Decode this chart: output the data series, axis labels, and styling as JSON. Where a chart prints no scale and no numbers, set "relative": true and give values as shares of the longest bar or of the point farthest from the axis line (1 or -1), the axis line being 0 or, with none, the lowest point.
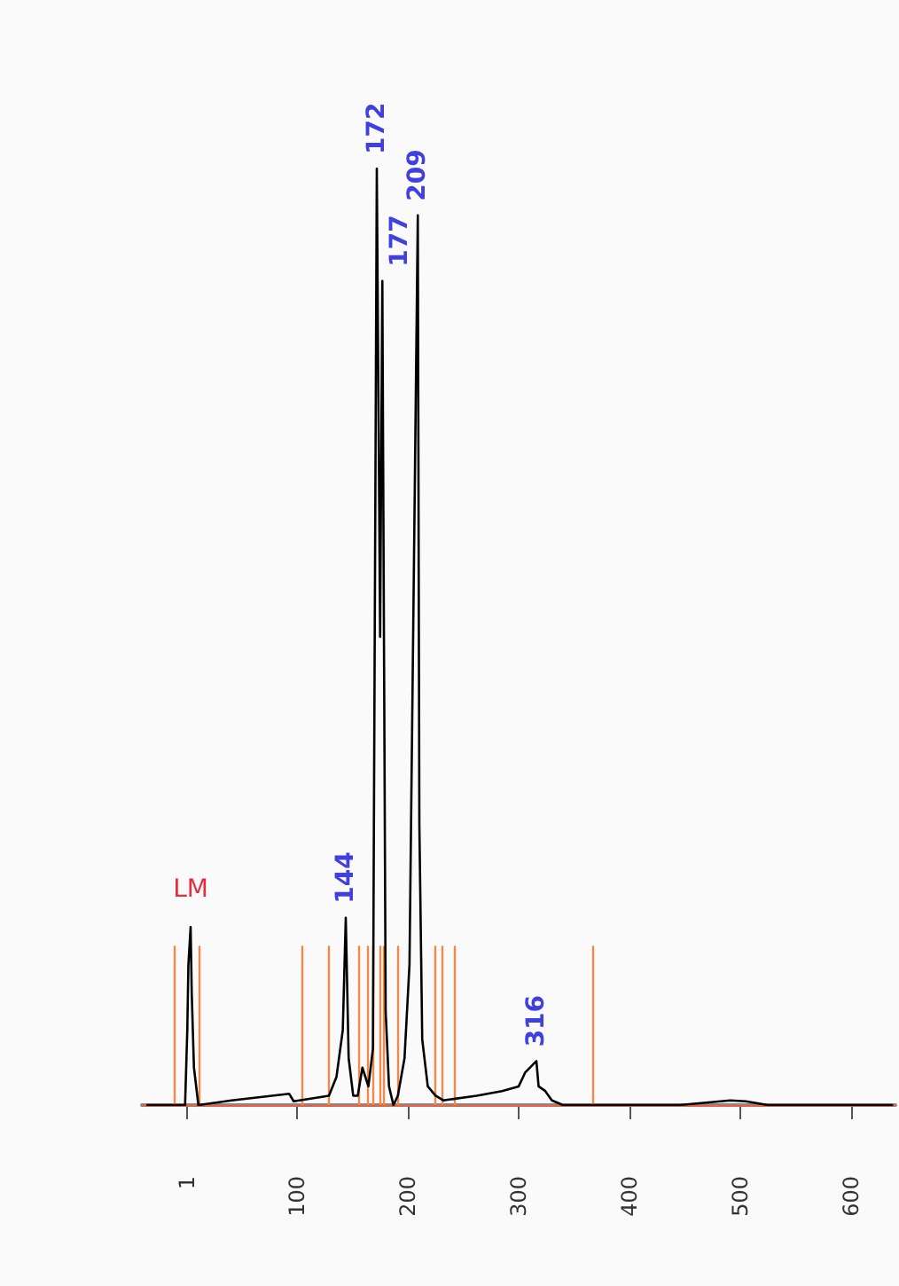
{
  "chart_data": {
    "type": "line",
    "relative": true,
    "grid": false,
    "marker": "none",
    "line_style": "solid",
    "xlim": [
      -40,
      640
    ],
    "xticks": [
      1,
      100,
      200,
      300,
      400,
      500,
      600
    ],
    "series": [
      {
        "color": "#000000",
        "x": [
          -35,
          -13,
          -4,
          -1,
          1,
          2,
          4,
          5,
          7,
          11,
          41,
          93,
          97,
          128.8,
          135.6,
          141.3,
          144,
          146.6,
          150.7,
          154.8,
          159,
          164.4,
          168.5,
          172,
          175,
          177,
          180,
          183,
          187,
          191,
          197,
          201.5,
          209,
          210.4,
          213,
          218,
          225,
          232,
          262,
          285,
          300,
          306,
          316,
          318,
          324,
          330,
          340,
          445,
          491,
          505,
          525,
          550,
          637
        ],
        "values": [
          0,
          0,
          0,
          0,
          0.08,
          0.15,
          0.19,
          0.12,
          0.04,
          0,
          0.005,
          0.012,
          0.004,
          0.01,
          0.03,
          0.08,
          0.2,
          0.05,
          0.01,
          0.01,
          0.04,
          0.02,
          0.06,
          1,
          0.5,
          0.88,
          0.1,
          0.02,
          0,
          0.01,
          0.05,
          0.15,
          0.95,
          0.3,
          0.07,
          0.02,
          0.01,
          0.005,
          0.01,
          0.015,
          0.02,
          0.035,
          0.047,
          0.02,
          0.015,
          0.005,
          0,
          0,
          0.005,
          0.004,
          0,
          0,
          0
        ]
      }
    ],
    "ref_lines": [
      {
        "axis": "y",
        "value": 0,
        "color": "#e8603c"
      },
      {
        "axis": "x",
        "value": -11,
        "color": "#f08a4b"
      },
      {
        "axis": "x",
        "value": 12,
        "color": "#f08a4b"
      },
      {
        "axis": "x",
        "value": 104,
        "color": "#f08a4b"
      },
      {
        "axis": "x",
        "value": 129,
        "color": "#f08a4b"
      },
      {
        "axis": "x",
        "value": 156,
        "color": "#f08a4b"
      },
      {
        "axis": "x",
        "value": 164,
        "color": "#f08a4b"
      },
      {
        "axis": "x",
        "value": 168.5,
        "color": "#f08a4b"
      },
      {
        "axis": "x",
        "value": 174,
        "color": "#f08a4b"
      },
      {
        "axis": "x",
        "value": 178,
        "color": "#f08a4b"
      },
      {
        "axis": "x",
        "value": 190,
        "color": "#f08a4b"
      },
      {
        "axis": "x",
        "value": 225,
        "color": "#f08a4b"
      },
      {
        "axis": "x",
        "value": 230,
        "color": "#f08a4b"
      },
      {
        "axis": "x",
        "value": 242,
        "color": "#f08a4b"
      },
      {
        "axis": "x",
        "value": 366,
        "color": "#f08a4b"
      }
    ],
    "annotations": [
      {
        "text": "LM",
        "x": 4,
        "y": 0.19
      },
      {
        "text": "144",
        "x": 144,
        "y": 0.2
      },
      {
        "text": "172",
        "x": 172,
        "y": 1
      },
      {
        "text": "177",
        "x": 177,
        "y": 0.88
      },
      {
        "text": "209",
        "x": 209,
        "y": 0.95
      },
      {
        "text": "316",
        "x": 316,
        "y": 0.047
      }
    ]
  }
}
